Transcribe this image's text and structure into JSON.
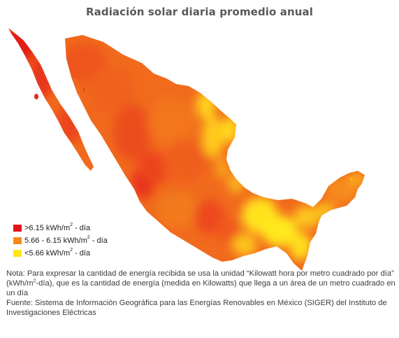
{
  "title": "Radiación solar diaria promedio anual",
  "legend": {
    "items": [
      {
        "pre": ">6.15 kWh/m",
        "sup": "2",
        "post": " - día",
        "color": "#e4141c"
      },
      {
        "pre": "5.66 - 6.15 kWh/m",
        "sup": "2",
        "post": " - día",
        "color": "#f6891c"
      },
      {
        "pre": "<5.66 kWh/m",
        "sup": "2",
        "post": " - día",
        "color": "#ffe614"
      }
    ]
  },
  "note": {
    "part1": "Nota: Para expresar la cantidad de energía recibida se usa la unidad “Kilowatt hora por metro cuadrado por día” (kWh/m",
    "sup": "2",
    "part2": "-día), que es la cantidad de energía (medida en Kilowatts) que llega a un área de un metro cuadrado en un día"
  },
  "source": "Fuente: Sistema de Información Geográfica para las Energías Renovables en México (SIGER) del Instituto de Investigaciones Eléctricas"
}
